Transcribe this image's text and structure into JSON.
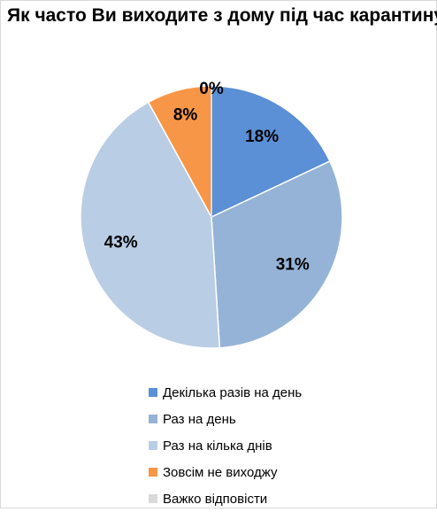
{
  "chart_data": {
    "type": "pie",
    "title": "Як часто Ви виходите з дому під час карантину?",
    "categories": [
      "Декілька разів на день",
      "Раз на день",
      "Раз на кілька днів",
      "Зовсім не виходжу",
      "Важко відповісти"
    ],
    "values": [
      18,
      31,
      43,
      8,
      0
    ],
    "data_labels": [
      "18%",
      "31%",
      "43%",
      "8%",
      "0%"
    ],
    "colors": [
      "#5b8fd6",
      "#95b3d7",
      "#b9cde5",
      "#f79646",
      "#d9d9d9"
    ],
    "legend_position": "bottom",
    "start_angle": "top",
    "direction": "clockwise"
  }
}
